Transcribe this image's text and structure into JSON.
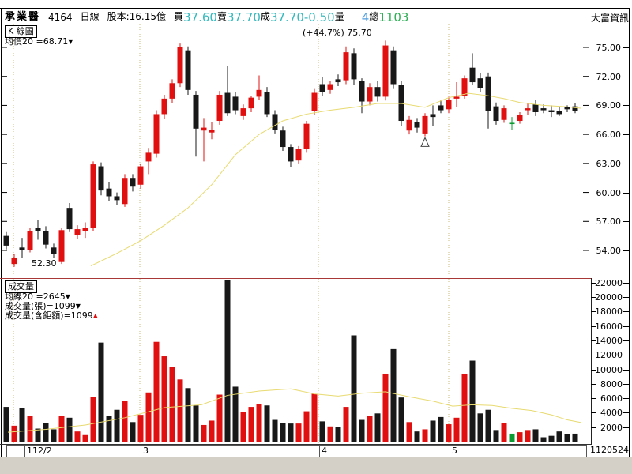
{
  "info_bar": {
    "stock_name": "承業醫",
    "stock_code": "4164",
    "period": "日線",
    "capital": "股本:16.15億",
    "buy_label": "買",
    "buy": "37.60",
    "sell_label": "賣",
    "sell": "37.70",
    "deal_label": "成",
    "deal": "37.70",
    "change": "-0.50",
    "volume_label": "量",
    "volume": "4",
    "total_label": "總",
    "total": "1103",
    "brand": "大富資訊"
  },
  "price_panel": {
    "title": "K 線圖",
    "ma_label": "均價20 =68.71",
    "ma_arrow": "▼",
    "high_annotation": "(+44.7%) 75.70",
    "low_annotation": "52.30"
  },
  "volume_panel": {
    "title": "成交量",
    "ma_label": "均線20 =2645",
    "ma_arrow": "▼",
    "line1": "成交量(張)=1099",
    "line1_arrow": "▼",
    "line2": "成交量(含鉅額)=1099",
    "line2_arrow": "▲"
  },
  "date_axis": {
    "ticks": [
      {
        "label": "112/2",
        "idx": 2.2
      },
      {
        "label": "3",
        "idx": 16.9
      },
      {
        "label": "4",
        "idx": 39.5
      },
      {
        "label": "5",
        "idx": 56.0
      }
    ],
    "right_date": "1120524"
  },
  "chart_data": {
    "type": "candlestick+volume",
    "title": "K線圖 / 成交量 (日線)",
    "price_axis": {
      "ticks": [
        75,
        72,
        69,
        66,
        63,
        60,
        57,
        54
      ],
      "unit": "元"
    },
    "volume_axis": {
      "ticks": [
        22000,
        20000,
        18000,
        16000,
        14000,
        12000,
        10000,
        8000,
        6000,
        4000,
        2000
      ],
      "unit": "張"
    },
    "gridline_idx": [
      0.9,
      16.9,
      39.5,
      56.0
    ],
    "colors": {
      "up": "#e01010",
      "down": "#181818",
      "flat_green": "#0a9a30",
      "ma": "#e8da70",
      "grid": "#c9bb7e",
      "frame_red": "#a83838"
    },
    "high_marker": {
      "index": 48,
      "price": 75.7
    },
    "low_marker": {
      "index": 1,
      "price": 52.3
    },
    "triangle_marker": {
      "index": 53,
      "price": 65.9,
      "type": "hollow-triangle-up"
    },
    "candles": [
      {
        "o": 55.5,
        "h": 55.9,
        "l": 54.1,
        "c": 54.5,
        "k": "b",
        "v": 4800
      },
      {
        "o": 52.6,
        "h": 53.6,
        "l": 52.3,
        "c": 53.2,
        "k": "r",
        "v": 2200
      },
      {
        "o": 54.3,
        "h": 55.3,
        "l": 53.2,
        "c": 54.0,
        "k": "b",
        "v": 4700
      },
      {
        "o": 54.0,
        "h": 56.3,
        "l": 53.8,
        "c": 56.0,
        "k": "r",
        "v": 3500
      },
      {
        "o": 56.3,
        "h": 57.1,
        "l": 55.1,
        "c": 56.0,
        "k": "b",
        "v": 1800
      },
      {
        "o": 56.0,
        "h": 56.5,
        "l": 54.2,
        "c": 54.6,
        "k": "b",
        "v": 2600
      },
      {
        "o": 54.3,
        "h": 54.7,
        "l": 53.2,
        "c": 53.6,
        "k": "b",
        "v": 1700
      },
      {
        "o": 52.8,
        "h": 56.3,
        "l": 52.6,
        "c": 56.1,
        "k": "r",
        "v": 3500
      },
      {
        "o": 58.4,
        "h": 58.9,
        "l": 55.9,
        "c": 56.2,
        "k": "b",
        "v": 3300
      },
      {
        "o": 55.6,
        "h": 56.6,
        "l": 55.2,
        "c": 56.2,
        "k": "r",
        "v": 1400
      },
      {
        "o": 56.0,
        "h": 56.9,
        "l": 55.3,
        "c": 56.3,
        "k": "r",
        "v": 900
      },
      {
        "o": 56.3,
        "h": 63.2,
        "l": 56.0,
        "c": 62.9,
        "k": "r",
        "v": 6200
      },
      {
        "o": 62.7,
        "h": 63.1,
        "l": 59.7,
        "c": 60.2,
        "k": "b",
        "v": 13700
      },
      {
        "o": 60.4,
        "h": 61.1,
        "l": 59.1,
        "c": 59.6,
        "k": "b",
        "v": 3600
      },
      {
        "o": 59.6,
        "h": 60.0,
        "l": 58.7,
        "c": 59.2,
        "k": "b",
        "v": 4400
      },
      {
        "o": 58.8,
        "h": 61.9,
        "l": 58.5,
        "c": 61.5,
        "k": "r",
        "v": 5600
      },
      {
        "o": 61.5,
        "h": 61.9,
        "l": 60.1,
        "c": 60.6,
        "k": "b",
        "v": 2700
      },
      {
        "o": 60.8,
        "h": 63.0,
        "l": 60.4,
        "c": 62.7,
        "k": "r",
        "v": 3700
      },
      {
        "o": 63.2,
        "h": 64.6,
        "l": 61.9,
        "c": 64.1,
        "k": "r",
        "v": 6800
      },
      {
        "o": 64.0,
        "h": 68.5,
        "l": 63.6,
        "c": 68.1,
        "k": "r",
        "v": 13800
      },
      {
        "o": 68.1,
        "h": 70.1,
        "l": 67.6,
        "c": 69.7,
        "k": "r",
        "v": 11800
      },
      {
        "o": 69.7,
        "h": 71.7,
        "l": 69.2,
        "c": 71.3,
        "k": "r",
        "v": 10300
      },
      {
        "o": 71.3,
        "h": 75.4,
        "l": 70.9,
        "c": 75.0,
        "k": "r",
        "v": 8600
      },
      {
        "o": 74.7,
        "h": 75.1,
        "l": 70.1,
        "c": 70.6,
        "k": "b",
        "v": 7400
      },
      {
        "o": 70.1,
        "h": 70.5,
        "l": 63.7,
        "c": 66.6,
        "k": "b",
        "v": 5000
      },
      {
        "o": 66.4,
        "h": 67.7,
        "l": 63.2,
        "c": 66.7,
        "k": "r",
        "v": 2300
      },
      {
        "o": 66.2,
        "h": 67.3,
        "l": 65.5,
        "c": 66.5,
        "k": "r",
        "v": 2900
      },
      {
        "o": 67.4,
        "h": 70.5,
        "l": 67.0,
        "c": 70.1,
        "k": "r",
        "v": 6500
      },
      {
        "o": 70.3,
        "h": 73.1,
        "l": 67.9,
        "c": 68.2,
        "k": "b",
        "v": 22400
      },
      {
        "o": 69.9,
        "h": 70.4,
        "l": 68.1,
        "c": 68.5,
        "k": "b",
        "v": 7600
      },
      {
        "o": 67.9,
        "h": 69.1,
        "l": 67.5,
        "c": 68.7,
        "k": "r",
        "v": 4100
      },
      {
        "o": 68.7,
        "h": 70.0,
        "l": 68.3,
        "c": 69.8,
        "k": "r",
        "v": 4800
      },
      {
        "o": 69.9,
        "h": 72.1,
        "l": 69.6,
        "c": 70.6,
        "k": "r",
        "v": 5200
      },
      {
        "o": 70.4,
        "h": 70.9,
        "l": 67.8,
        "c": 68.1,
        "k": "b",
        "v": 5000
      },
      {
        "o": 68.1,
        "h": 68.5,
        "l": 66.1,
        "c": 66.5,
        "k": "b",
        "v": 3000
      },
      {
        "o": 66.4,
        "h": 66.8,
        "l": 64.3,
        "c": 64.7,
        "k": "b",
        "v": 2600
      },
      {
        "o": 64.7,
        "h": 65.0,
        "l": 62.6,
        "c": 63.2,
        "k": "b",
        "v": 2500
      },
      {
        "o": 63.3,
        "h": 64.8,
        "l": 63.0,
        "c": 64.5,
        "k": "r",
        "v": 2500
      },
      {
        "o": 64.5,
        "h": 67.4,
        "l": 64.1,
        "c": 67.1,
        "k": "r",
        "v": 4200
      },
      {
        "o": 68.4,
        "h": 70.7,
        "l": 68.0,
        "c": 70.3,
        "k": "r",
        "v": 6600
      },
      {
        "o": 71.2,
        "h": 71.9,
        "l": 70.0,
        "c": 70.4,
        "k": "b",
        "v": 2800
      },
      {
        "o": 70.6,
        "h": 71.5,
        "l": 70.2,
        "c": 71.2,
        "k": "r",
        "v": 2100
      },
      {
        "o": 71.7,
        "h": 72.2,
        "l": 71.0,
        "c": 71.4,
        "k": "b",
        "v": 2000
      },
      {
        "o": 71.6,
        "h": 75.1,
        "l": 71.2,
        "c": 74.5,
        "k": "r",
        "v": 4800
      },
      {
        "o": 74.4,
        "h": 74.9,
        "l": 71.1,
        "c": 71.7,
        "k": "b",
        "v": 14700
      },
      {
        "o": 71.5,
        "h": 71.8,
        "l": 68.2,
        "c": 69.4,
        "k": "b",
        "v": 3000
      },
      {
        "o": 69.4,
        "h": 71.3,
        "l": 69.0,
        "c": 70.9,
        "k": "r",
        "v": 3600
      },
      {
        "o": 70.9,
        "h": 71.5,
        "l": 69.4,
        "c": 69.9,
        "k": "b",
        "v": 3900
      },
      {
        "o": 69.9,
        "h": 75.7,
        "l": 69.5,
        "c": 75.2,
        "k": "r",
        "v": 9400
      },
      {
        "o": 74.7,
        "h": 75.1,
        "l": 70.7,
        "c": 71.2,
        "k": "b",
        "v": 12800
      },
      {
        "o": 71.1,
        "h": 71.5,
        "l": 66.9,
        "c": 67.4,
        "k": "b",
        "v": 6100
      },
      {
        "o": 66.4,
        "h": 67.9,
        "l": 66.0,
        "c": 67.5,
        "k": "r",
        "v": 2700
      },
      {
        "o": 67.3,
        "h": 67.7,
        "l": 66.2,
        "c": 66.7,
        "k": "b",
        "v": 1400
      },
      {
        "o": 66.1,
        "h": 68.2,
        "l": 65.8,
        "c": 67.9,
        "k": "r",
        "v": 1700
      },
      {
        "o": 68.1,
        "h": 69.0,
        "l": 66.9,
        "c": 67.8,
        "k": "b",
        "v": 2900
      },
      {
        "o": 69.0,
        "h": 69.6,
        "l": 68.2,
        "c": 68.5,
        "k": "b",
        "v": 3400
      },
      {
        "o": 68.6,
        "h": 69.9,
        "l": 68.2,
        "c": 69.6,
        "k": "r",
        "v": 2400
      },
      {
        "o": 69.7,
        "h": 71.4,
        "l": 68.8,
        "c": 69.9,
        "k": "r",
        "v": 3300
      },
      {
        "o": 70.0,
        "h": 72.1,
        "l": 69.7,
        "c": 71.8,
        "k": "r",
        "v": 9400
      },
      {
        "o": 72.9,
        "h": 74.4,
        "l": 71.1,
        "c": 71.4,
        "k": "b",
        "v": 11200
      },
      {
        "o": 71.8,
        "h": 72.3,
        "l": 70.4,
        "c": 70.8,
        "k": "b",
        "v": 3900
      },
      {
        "o": 72.0,
        "h": 72.4,
        "l": 66.6,
        "c": 68.4,
        "k": "b",
        "v": 4400
      },
      {
        "o": 68.9,
        "h": 69.3,
        "l": 67.0,
        "c": 67.4,
        "k": "b",
        "v": 1600
      },
      {
        "o": 67.5,
        "h": 69.0,
        "l": 67.2,
        "c": 68.7,
        "k": "r",
        "v": 2600
      },
      {
        "o": 67.2,
        "h": 67.8,
        "l": 66.5,
        "c": 67.2,
        "k": "g",
        "v": 1100
      },
      {
        "o": 67.4,
        "h": 68.3,
        "l": 67.1,
        "c": 68.0,
        "k": "r",
        "v": 1300
      },
      {
        "o": 68.5,
        "h": 69.2,
        "l": 68.0,
        "c": 68.7,
        "k": "r",
        "v": 1600
      },
      {
        "o": 69.1,
        "h": 69.6,
        "l": 67.9,
        "c": 68.3,
        "k": "b",
        "v": 1700
      },
      {
        "o": 68.7,
        "h": 69.1,
        "l": 68.2,
        "c": 68.5,
        "k": "b",
        "v": 600
      },
      {
        "o": 68.5,
        "h": 69.0,
        "l": 67.8,
        "c": 68.3,
        "k": "b",
        "v": 800
      },
      {
        "o": 68.4,
        "h": 68.8,
        "l": 67.9,
        "c": 68.1,
        "k": "b",
        "v": 1400
      },
      {
        "o": 68.6,
        "h": 69.0,
        "l": 68.3,
        "c": 68.8,
        "k": "b",
        "v": 1000
      },
      {
        "o": 68.9,
        "h": 69.2,
        "l": 68.2,
        "c": 68.4,
        "k": "b",
        "v": 1099
      }
    ],
    "price_ma20": [
      [
        10.7,
        52.4
      ],
      [
        14,
        53.7
      ],
      [
        17,
        55.0
      ],
      [
        20,
        56.6
      ],
      [
        23,
        58.4
      ],
      [
        26,
        60.8
      ],
      [
        29,
        63.9
      ],
      [
        32,
        66.0
      ],
      [
        35,
        67.4
      ],
      [
        38,
        68.1
      ],
      [
        41,
        68.5
      ],
      [
        44,
        68.8
      ],
      [
        47,
        69.2
      ],
      [
        50,
        69.2
      ],
      [
        53,
        68.8
      ],
      [
        56,
        69.8
      ],
      [
        58.5,
        70.25
      ],
      [
        61,
        70.0
      ],
      [
        63,
        69.7
      ],
      [
        65,
        69.3
      ],
      [
        68,
        69.0
      ],
      [
        71,
        68.85
      ],
      [
        72.7,
        68.71
      ]
    ],
    "volume_ma20": [
      [
        0.2,
        1300
      ],
      [
        5,
        1700
      ],
      [
        10,
        2300
      ],
      [
        15,
        3300
      ],
      [
        20,
        4700
      ],
      [
        24.7,
        5100
      ],
      [
        28,
        6400
      ],
      [
        32,
        7000
      ],
      [
        36,
        7300
      ],
      [
        39,
        6600
      ],
      [
        42,
        6300
      ],
      [
        45,
        6700
      ],
      [
        48,
        6900
      ],
      [
        51,
        6200
      ],
      [
        54,
        5600
      ],
      [
        56.5,
        4900
      ],
      [
        59,
        5100
      ],
      [
        61.5,
        5000
      ],
      [
        64,
        4600
      ],
      [
        66.5,
        4300
      ],
      [
        69,
        3700
      ],
      [
        71,
        3000
      ],
      [
        72.7,
        2645
      ]
    ]
  }
}
